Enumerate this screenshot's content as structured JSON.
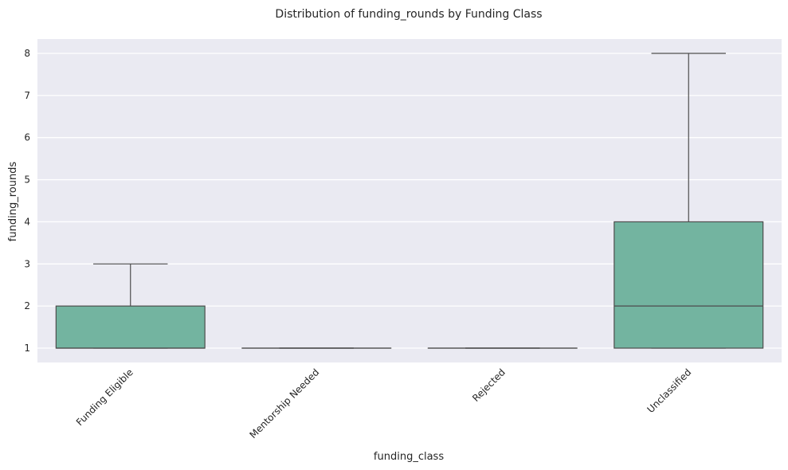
{
  "chart_data": {
    "type": "box",
    "title": "Distribution of funding_rounds by Funding Class",
    "xlabel": "funding_class",
    "ylabel": "funding_rounds",
    "ylim": [
      0.66,
      8.34
    ],
    "yticks": [
      1,
      2,
      3,
      4,
      5,
      6,
      7,
      8
    ],
    "grid": true,
    "categories": [
      "Funding Eligible",
      "Mentorship Needed",
      "Rejected",
      "Unclassified"
    ],
    "boxes": [
      {
        "category": "Funding Eligible",
        "whisker_low": 1,
        "q1": 1,
        "median": 1,
        "q3": 2,
        "whisker_high": 3
      },
      {
        "category": "Mentorship Needed",
        "whisker_low": 1,
        "q1": 1,
        "median": 1,
        "q3": 1,
        "whisker_high": 1
      },
      {
        "category": "Rejected",
        "whisker_low": 1,
        "q1": 1,
        "median": 1,
        "q3": 1,
        "whisker_high": 1
      },
      {
        "category": "Unclassified",
        "whisker_low": 1,
        "q1": 1,
        "median": 2,
        "q3": 4,
        "whisker_high": 8
      }
    ],
    "colors": {
      "box_fill": "#73b4a0",
      "box_edge": "#4d4d4d",
      "plot_background": "#eaeaf2",
      "grid": "#ffffff"
    }
  }
}
